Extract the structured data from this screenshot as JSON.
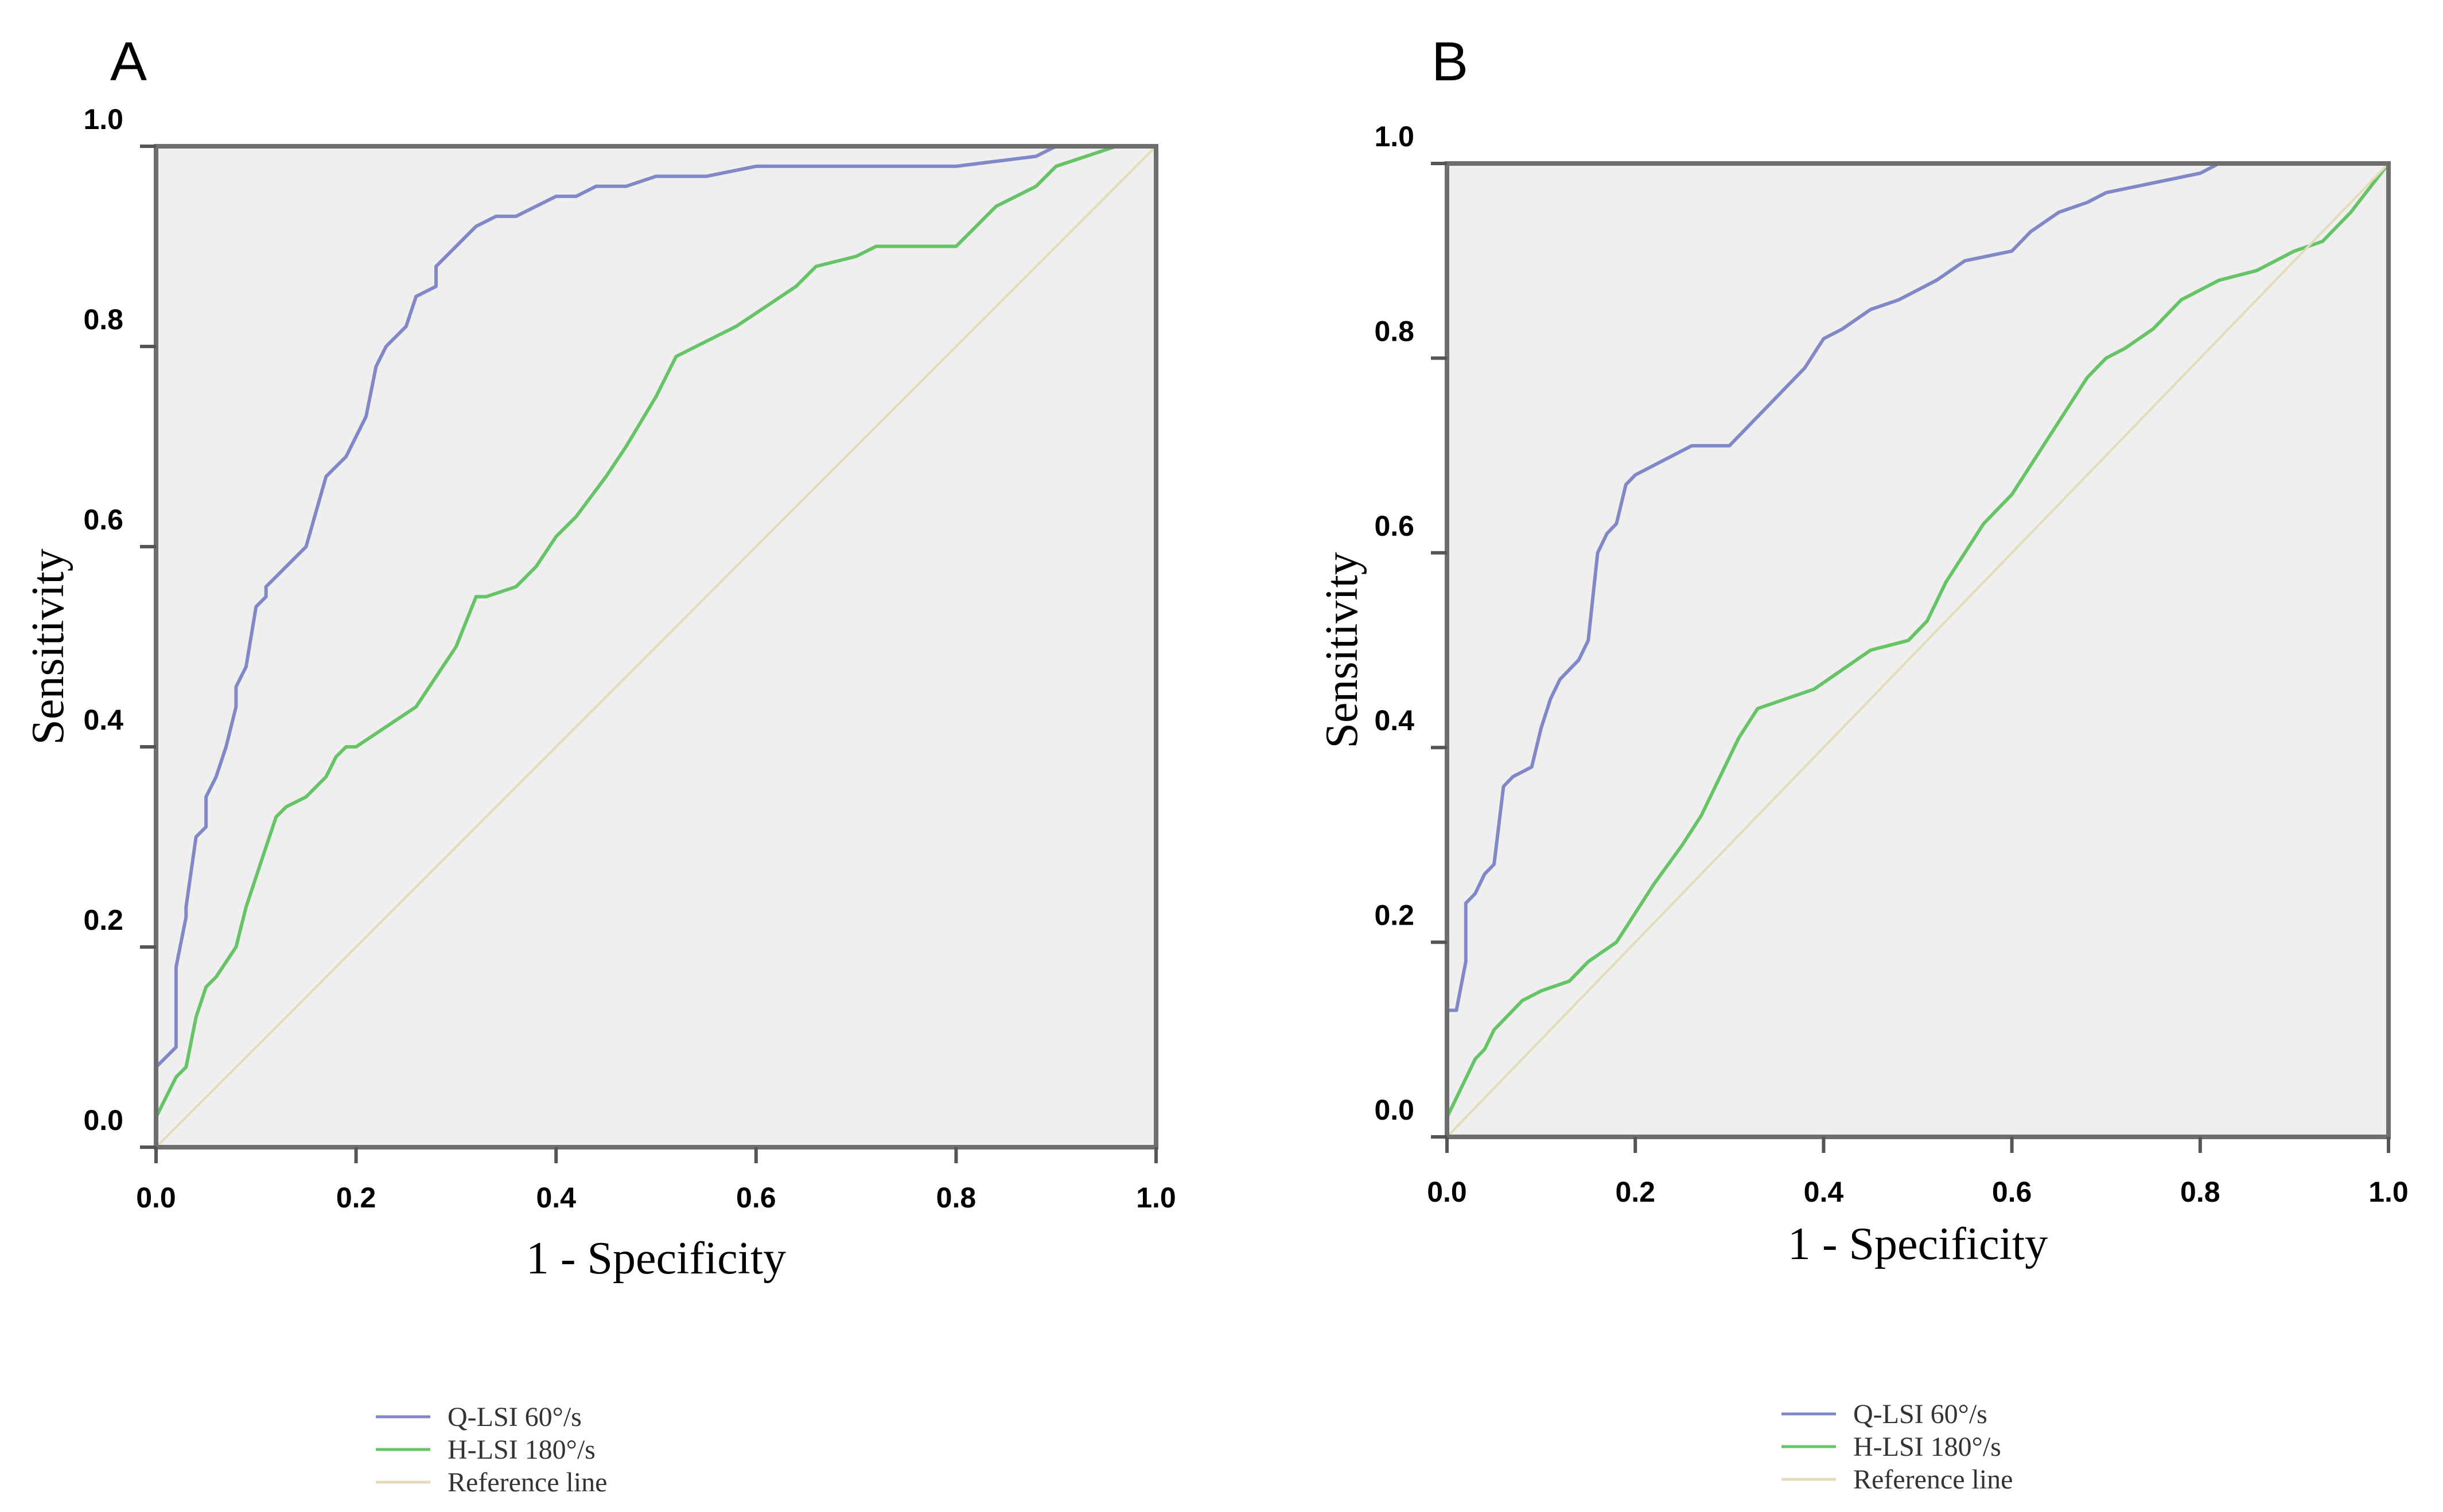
{
  "chart_data": [
    {
      "type": "line",
      "panel_label": "A",
      "xlabel": "1 - Specificity",
      "ylabel": "Sensitivity",
      "xlim": [
        0,
        1
      ],
      "ylim": [
        0,
        1
      ],
      "x_ticks": [
        "0.0",
        "0.2",
        "0.4",
        "0.6",
        "0.8",
        "1.0"
      ],
      "y_ticks": [
        "0.0",
        "0.2",
        "0.4",
        "0.6",
        "0.8",
        "1.0"
      ],
      "grid": false,
      "legend_position": "bottom",
      "series": [
        {
          "name": "Q-LSI 60°/s",
          "color": "#8088c8",
          "x": [
            0,
            0,
            0.01,
            0.02,
            0.02,
            0.03,
            0.03,
            0.04,
            0.05,
            0.05,
            0.06,
            0.07,
            0.08,
            0.08,
            0.09,
            0.1,
            0.11,
            0.11,
            0.12,
            0.13,
            0.15,
            0.17,
            0.18,
            0.19,
            0.21,
            0.22,
            0.23,
            0.24,
            0.25,
            0.26,
            0.28,
            0.28,
            0.3,
            0.31,
            0.32,
            0.34,
            0.36,
            0.38,
            0.4,
            0.42,
            0.44,
            0.47,
            0.5,
            0.55,
            0.6,
            0.7,
            0.8,
            0.88,
            0.9,
            0.95,
            1.0
          ],
          "y": [
            0,
            0.08,
            0.09,
            0.1,
            0.18,
            0.23,
            0.24,
            0.31,
            0.32,
            0.35,
            0.37,
            0.4,
            0.44,
            0.46,
            0.48,
            0.54,
            0.55,
            0.56,
            0.57,
            0.58,
            0.6,
            0.67,
            0.68,
            0.69,
            0.73,
            0.78,
            0.8,
            0.81,
            0.82,
            0.85,
            0.86,
            0.88,
            0.9,
            0.91,
            0.92,
            0.93,
            0.93,
            0.94,
            0.95,
            0.95,
            0.96,
            0.96,
            0.97,
            0.97,
            0.98,
            0.98,
            0.98,
            0.99,
            1.0,
            1.0,
            1.0
          ]
        },
        {
          "name": "H-LSI 180°/s",
          "color": "#66c466",
          "x": [
            0,
            0,
            0.01,
            0.02,
            0.03,
            0.04,
            0.05,
            0.06,
            0.08,
            0.09,
            0.1,
            0.11,
            0.12,
            0.13,
            0.15,
            0.17,
            0.18,
            0.19,
            0.2,
            0.23,
            0.26,
            0.28,
            0.3,
            0.32,
            0.33,
            0.36,
            0.38,
            0.4,
            0.42,
            0.45,
            0.47,
            0.5,
            0.52,
            0.54,
            0.56,
            0.58,
            0.61,
            0.64,
            0.66,
            0.7,
            0.72,
            0.75,
            0.8,
            0.82,
            0.84,
            0.86,
            0.88,
            0.9,
            0.93,
            0.96,
            1.0
          ],
          "y": [
            0,
            0.03,
            0.05,
            0.07,
            0.08,
            0.13,
            0.16,
            0.17,
            0.2,
            0.24,
            0.27,
            0.3,
            0.33,
            0.34,
            0.35,
            0.37,
            0.39,
            0.4,
            0.4,
            0.42,
            0.44,
            0.47,
            0.5,
            0.55,
            0.55,
            0.56,
            0.58,
            0.61,
            0.63,
            0.67,
            0.7,
            0.75,
            0.79,
            0.8,
            0.81,
            0.82,
            0.84,
            0.86,
            0.88,
            0.89,
            0.9,
            0.9,
            0.9,
            0.92,
            0.94,
            0.95,
            0.96,
            0.98,
            0.99,
            1.0,
            1.0
          ]
        },
        {
          "name": "Reference line",
          "color": "#e2dcb8",
          "x": [
            0,
            1
          ],
          "y": [
            0,
            1
          ]
        }
      ]
    },
    {
      "type": "line",
      "panel_label": "B",
      "xlabel": "1 - Specificity",
      "ylabel": "Sensitivity",
      "xlim": [
        0,
        1
      ],
      "ylim": [
        0,
        1
      ],
      "x_ticks": [
        "0.0",
        "0.2",
        "0.4",
        "0.6",
        "0.8",
        "1.0"
      ],
      "y_ticks": [
        "0.0",
        "0.2",
        "0.4",
        "0.6",
        "0.8",
        "1.0"
      ],
      "grid": false,
      "legend_position": "bottom",
      "series": [
        {
          "name": "Q-LSI 60°/s",
          "color": "#8088c8",
          "x": [
            0,
            0,
            0.01,
            0.02,
            0.02,
            0.03,
            0.04,
            0.05,
            0.06,
            0.07,
            0.09,
            0.1,
            0.11,
            0.12,
            0.14,
            0.15,
            0.16,
            0.17,
            0.18,
            0.19,
            0.2,
            0.22,
            0.24,
            0.26,
            0.3,
            0.32,
            0.34,
            0.36,
            0.38,
            0.4,
            0.42,
            0.45,
            0.48,
            0.5,
            0.52,
            0.55,
            0.6,
            0.62,
            0.65,
            0.68,
            0.7,
            0.75,
            0.8,
            0.82,
            0.9,
            1.0
          ],
          "y": [
            0,
            0.13,
            0.13,
            0.18,
            0.24,
            0.25,
            0.27,
            0.28,
            0.36,
            0.37,
            0.38,
            0.42,
            0.45,
            0.47,
            0.49,
            0.51,
            0.6,
            0.62,
            0.63,
            0.67,
            0.68,
            0.69,
            0.7,
            0.71,
            0.71,
            0.73,
            0.75,
            0.77,
            0.79,
            0.82,
            0.83,
            0.85,
            0.86,
            0.87,
            0.88,
            0.9,
            0.91,
            0.93,
            0.95,
            0.96,
            0.97,
            0.98,
            0.99,
            1.0,
            1.0,
            1.0
          ]
        },
        {
          "name": "H-LSI 180°/s",
          "color": "#66c466",
          "x": [
            0,
            0,
            0.01,
            0.02,
            0.03,
            0.04,
            0.05,
            0.06,
            0.08,
            0.1,
            0.13,
            0.15,
            0.18,
            0.2,
            0.22,
            0.25,
            0.27,
            0.29,
            0.31,
            0.33,
            0.36,
            0.39,
            0.42,
            0.45,
            0.49,
            0.51,
            0.53,
            0.55,
            0.57,
            0.6,
            0.62,
            0.64,
            0.66,
            0.68,
            0.7,
            0.72,
            0.75,
            0.78,
            0.82,
            0.86,
            0.9,
            0.93,
            0.96,
            1.0
          ],
          "y": [
            0,
            0.02,
            0.04,
            0.06,
            0.08,
            0.09,
            0.11,
            0.12,
            0.14,
            0.15,
            0.16,
            0.18,
            0.2,
            0.23,
            0.26,
            0.3,
            0.33,
            0.37,
            0.41,
            0.44,
            0.45,
            0.46,
            0.48,
            0.5,
            0.51,
            0.53,
            0.57,
            0.6,
            0.63,
            0.66,
            0.69,
            0.72,
            0.75,
            0.78,
            0.8,
            0.81,
            0.83,
            0.86,
            0.88,
            0.89,
            0.91,
            0.92,
            0.95,
            1.0
          ]
        },
        {
          "name": "Reference line",
          "color": "#e2dcb8",
          "x": [
            0,
            1
          ],
          "y": [
            0,
            1
          ]
        }
      ]
    }
  ]
}
